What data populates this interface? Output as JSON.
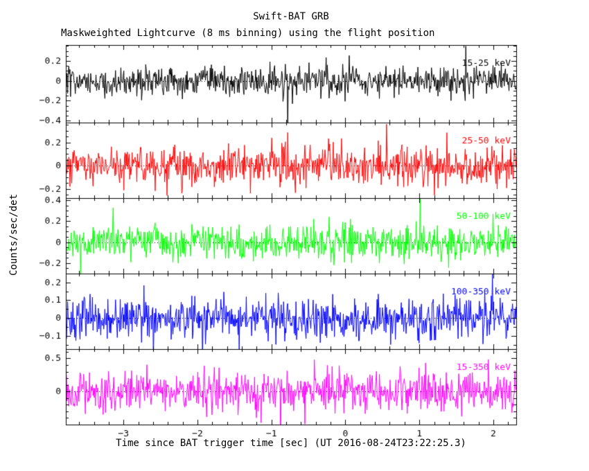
{
  "chart_data": {
    "type": "line",
    "title": "Swift-BAT GRB",
    "subtitle": "Maskweighted Lightcurve (8 ms binning) using the flight position",
    "xlabel": "Time since BAT trigger time [sec] (UT 2016-08-24T23:22:25.3)",
    "ylabel": "Counts/sec/det",
    "x_range": [
      -3.78,
      2.31
    ],
    "x_ticks": [
      -3,
      -2,
      -1,
      0,
      1,
      2
    ],
    "x_minor_step": 0.2,
    "bin_seconds": 0.008,
    "grid": false,
    "legend_position": "in-panel top-right",
    "panels": [
      {
        "label": "15-25 keV",
        "color": "#000000",
        "ylim": [
          -0.42,
          0.36
        ],
        "yticks": [
          0.2,
          0,
          -0.2,
          -0.4
        ],
        "y_minor_step": 0.05,
        "mean": 0,
        "noise_sigma": 0.075,
        "seed": 101
      },
      {
        "label": "25-50 keV",
        "color": "#ff0000",
        "ylim": [
          -0.28,
          0.37
        ],
        "yticks": [
          0.2,
          0,
          -0.2
        ],
        "y_minor_step": 0.05,
        "mean": 0,
        "noise_sigma": 0.085,
        "seed": 202
      },
      {
        "label": "50-100 keV",
        "color": "#00ff00",
        "ylim": [
          -0.3,
          0.42
        ],
        "yticks": [
          0.4,
          0.2,
          0,
          -0.2
        ],
        "y_minor_step": 0.05,
        "mean": 0,
        "noise_sigma": 0.08,
        "seed": 303
      },
      {
        "label": "100-350 keV",
        "color": "#0000ff",
        "ylim": [
          -0.175,
          0.25
        ],
        "yticks": [
          0.2,
          0.1,
          0,
          -0.1
        ],
        "y_minor_step": 0.05,
        "mean": 0,
        "noise_sigma": 0.06,
        "seed": 404
      },
      {
        "label": "15-350 keV",
        "color": "#ff00ff",
        "ylim": [
          -0.5,
          0.64
        ],
        "yticks": [
          0.5,
          0
        ],
        "y_minor_step": 0.1,
        "mean": 0,
        "noise_sigma": 0.16,
        "seed": 505
      }
    ]
  }
}
